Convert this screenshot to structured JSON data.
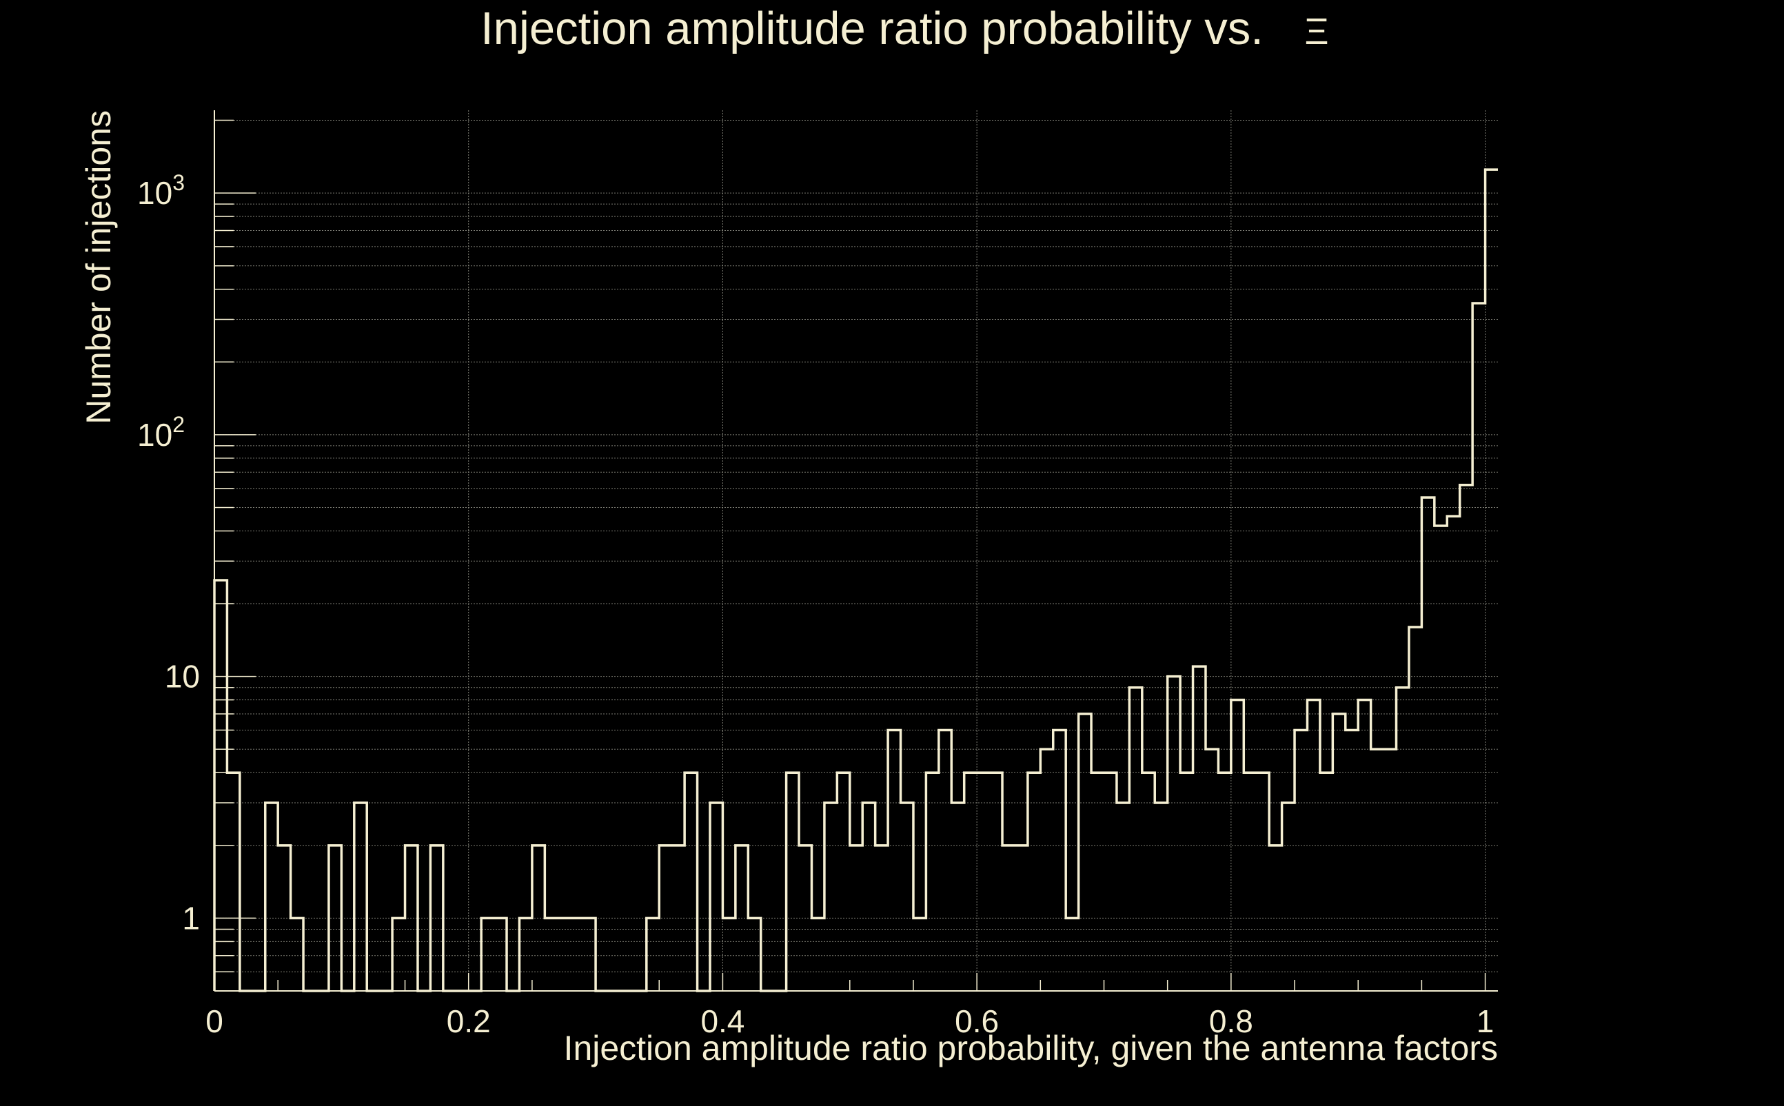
{
  "chart_data": {
    "type": "histogram",
    "title": "Injection amplitude ratio probability vs.",
    "title_symbol": "Ξ",
    "xlabel": "Injection amplitude ratio probability, given the antenna factors",
    "ylabel": "Number of injections",
    "xlim": [
      0,
      1.01
    ],
    "ylim": [
      0.5,
      2200
    ],
    "yscale": "log",
    "grid": true,
    "line_color": "#f5efd2",
    "text_color": "#f5efd2",
    "background": "#000000",
    "x_ticks": [
      {
        "value": 0,
        "label": "0"
      },
      {
        "value": 0.2,
        "label": "0.2"
      },
      {
        "value": 0.4,
        "label": "0.4"
      },
      {
        "value": 0.6,
        "label": "0.6"
      },
      {
        "value": 0.8,
        "label": "0.8"
      },
      {
        "value": 1.0,
        "label": "1"
      }
    ],
    "y_ticks": [
      {
        "value": 1,
        "base": "1",
        "exp": ""
      },
      {
        "value": 10,
        "base": "10",
        "exp": ""
      },
      {
        "value": 100,
        "base": "10",
        "exp": "2"
      },
      {
        "value": 1000,
        "base": "10",
        "exp": "3"
      }
    ],
    "bin_width": 0.01,
    "bin_start": 0,
    "values": [
      25,
      4,
      0,
      0,
      3,
      2,
      1,
      0,
      0,
      2,
      0,
      3,
      0,
      0,
      1,
      2,
      0,
      2,
      0,
      0,
      0,
      1,
      1,
      0,
      1,
      2,
      1,
      1,
      1,
      1,
      0,
      0,
      0,
      0,
      1,
      2,
      2,
      4,
      0,
      3,
      1,
      2,
      1,
      0,
      0,
      4,
      2,
      1,
      3,
      4,
      2,
      3,
      2,
      6,
      3,
      1,
      4,
      6,
      3,
      4,
      4,
      4,
      2,
      2,
      4,
      5,
      6,
      1,
      7,
      4,
      4,
      3,
      9,
      4,
      3,
      10,
      4,
      11,
      5,
      4,
      8,
      4,
      4,
      2,
      3,
      6,
      8,
      4,
      7,
      6,
      8,
      5,
      5,
      9,
      16,
      55,
      42,
      46,
      62,
      350,
      1250
    ]
  }
}
